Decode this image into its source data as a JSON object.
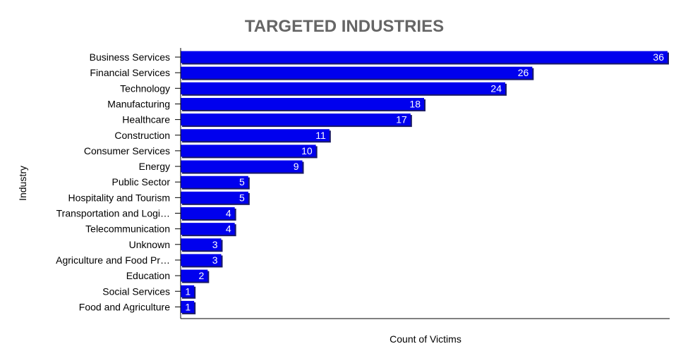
{
  "chart_data": {
    "type": "bar",
    "orientation": "horizontal",
    "title": "TARGETED INDUSTRIES",
    "xlabel": "Count of Victims",
    "ylabel": "Industry",
    "categories": [
      "Business Services",
      "Financial Services",
      "Technology",
      "Manufacturing",
      "Healthcare",
      "Construction",
      "Consumer Services",
      "Energy",
      "Public Sector",
      "Hospitality and Tourism",
      "Transportation and Logi…",
      "Telecommunication",
      "Unknown",
      "Agriculture and Food Pr…",
      "Education",
      "Social Services",
      "Food and Agriculture"
    ],
    "values": [
      36,
      26,
      24,
      18,
      17,
      11,
      10,
      9,
      5,
      5,
      4,
      4,
      3,
      3,
      2,
      1,
      1
    ],
    "xlim": [
      0,
      36
    ],
    "grid": false,
    "legend": "none",
    "bar_color": "#0000ee",
    "bar_shadow_color": "#1a1a66"
  }
}
